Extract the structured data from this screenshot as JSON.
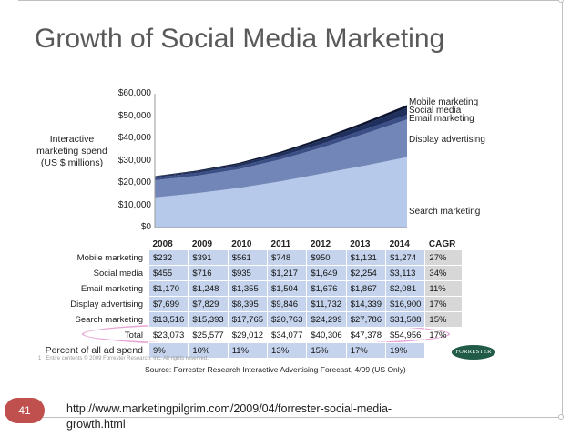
{
  "slide": {
    "title": "Growth of Social Media Marketing",
    "number": "41",
    "url": "http://www.marketingpilgrim.com/2009/04/forrester-social-media-growth.html"
  },
  "chart_data": {
    "type": "area",
    "stacked": true,
    "ylabel": "Interactive marketing spend (US $ millions)",
    "ylim": [
      0,
      60000
    ],
    "yticks": [
      "$0",
      "$10,000",
      "$20,000",
      "$30,000",
      "$40,000",
      "$50,000",
      "$60,000"
    ],
    "x": [
      "2008",
      "2009",
      "2010",
      "2011",
      "2012",
      "2013",
      "2014"
    ],
    "series": [
      {
        "name": "Search marketing",
        "values": [
          13516,
          15393,
          17765,
          20763,
          24299,
          27786,
          31588
        ],
        "color": "#b7c9ea"
      },
      {
        "name": "Display advertising",
        "values": [
          7699,
          7829,
          8395,
          9846,
          11732,
          14339,
          16900
        ],
        "color": "#7287b8"
      },
      {
        "name": "Email marketing",
        "values": [
          1170,
          1248,
          1355,
          1504,
          1676,
          1867,
          2081
        ],
        "color": "#3b4f86"
      },
      {
        "name": "Social media",
        "values": [
          455,
          716,
          935,
          1217,
          1649,
          2254,
          3113
        ],
        "color": "#1f2f5e"
      },
      {
        "name": "Mobile marketing",
        "values": [
          232,
          391,
          561,
          748,
          950,
          1131,
          1274
        ],
        "color": "#0d1530"
      }
    ],
    "legend_placement": "right",
    "table": {
      "years": [
        "2008",
        "2009",
        "2010",
        "2011",
        "2012",
        "2013",
        "2014"
      ],
      "cagr_header": "CAGR",
      "rows": [
        {
          "label": "Mobile marketing",
          "values": [
            "$232",
            "$391",
            "$561",
            "$748",
            "$950",
            "$1,131",
            "$1,274"
          ],
          "cagr": "27%"
        },
        {
          "label": "Social media",
          "values": [
            "$455",
            "$716",
            "$935",
            "$1,217",
            "$1,649",
            "$2,254",
            "$3,113"
          ],
          "cagr": "34%"
        },
        {
          "label": "Email marketing",
          "values": [
            "$1,170",
            "$1,248",
            "$1,355",
            "$1,504",
            "$1,676",
            "$1,867",
            "$2,081"
          ],
          "cagr": "11%"
        },
        {
          "label": "Display advertising",
          "values": [
            "$7,699",
            "$7,829",
            "$8,395",
            "$9,846",
            "$11,732",
            "$14,339",
            "$16,900"
          ],
          "cagr": "17%"
        },
        {
          "label": "Search marketing",
          "values": [
            "$13,516",
            "$15,393",
            "$17,765",
            "$20,763",
            "$24,299",
            "$27,786",
            "$31,588"
          ],
          "cagr": "15%"
        }
      ],
      "total": {
        "label": "Total",
        "values": [
          "$23,073",
          "$25,577",
          "$29,012",
          "$34,077",
          "$40,306",
          "$47,378",
          "$54,956"
        ],
        "cagr": "17%"
      },
      "percent": {
        "label": "Percent of all ad spend",
        "values": [
          "9%",
          "10%",
          "11%",
          "13%",
          "15%",
          "17%",
          "19%"
        ]
      }
    },
    "source": "Source: Forrester Research Interactive Advertising Forecast, 4/09 (US Only)",
    "fine_print": "Entire contents © 2009 Forrester Research, Inc. All rights reserved.",
    "footnote_marker": "1",
    "logo_text": "FORRESTER"
  }
}
